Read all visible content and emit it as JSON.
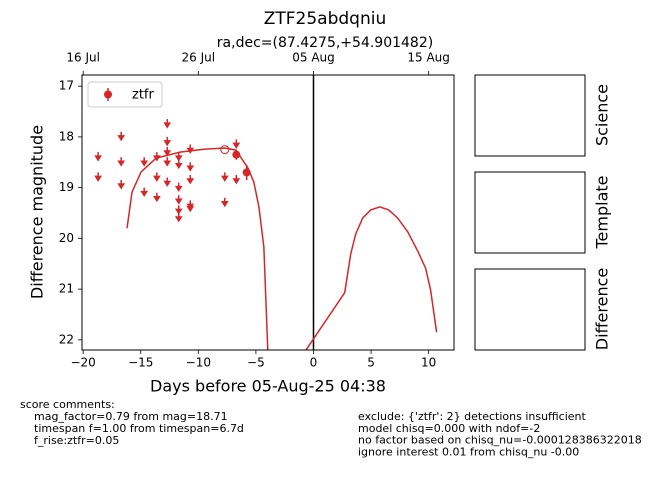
{
  "chart_data": {
    "type": "lightcurve",
    "title": "ZTF25abdqniu",
    "subtitle": "ra,dec=(87.4275,+54.901482)",
    "x_label": "Days before 05-Aug-25 04:38",
    "y_label": "Difference magnitude",
    "xlim": [
      -20.1,
      12.2
    ],
    "ylim": [
      22.2,
      16.78
    ],
    "xticks": [
      {
        "value": -20,
        "label": "−20"
      },
      {
        "value": -15,
        "label": "−15"
      },
      {
        "value": -10,
        "label": "−10"
      },
      {
        "value": -5,
        "label": "−5"
      },
      0,
      5,
      10
    ],
    "yticks": [
      17,
      18,
      19,
      20,
      21,
      22
    ],
    "x2ticks": [
      {
        "value": -20,
        "label": "16 Jul"
      },
      {
        "value": -10,
        "label": "26 Jul"
      },
      {
        "value": 0,
        "label": "05 Aug"
      },
      {
        "value": 10,
        "label": "15 Aug"
      }
    ],
    "vlines": [
      0
    ],
    "legend": "upper left",
    "series": [
      {
        "kind": "upper_limit",
        "color": "#d62728",
        "x": [
          -18.7,
          -18.7,
          -16.7,
          -16.7,
          -16.7,
          -14.7,
          -14.7,
          -13.6,
          -13.6,
          -13.6,
          -12.7,
          -12.7,
          -12.7,
          -12.7,
          -12.7,
          -11.7,
          -11.7,
          -11.7,
          -11.7,
          -11.7,
          -11.7,
          -10.7,
          -10.7,
          -10.7,
          -10.7,
          -10.7,
          -7.7,
          -7.7,
          -6.7,
          -6.7
        ],
        "values": [
          18.3,
          18.7,
          17.9,
          18.4,
          18.85,
          18.4,
          19.0,
          18.3,
          18.7,
          19.1,
          17.65,
          18.0,
          18.2,
          18.4,
          18.8,
          18.3,
          18.45,
          18.9,
          19.15,
          19.35,
          19.5,
          18.15,
          18.5,
          18.75,
          19.25,
          19.3,
          18.7,
          19.2,
          18.05,
          18.75
        ]
      },
      {
        "name": "ztfr",
        "kind": "detection",
        "color": "#d62728",
        "x": [
          -6.7,
          -5.8
        ],
        "values": [
          18.35,
          18.7
        ],
        "errors": [
          0.1,
          0.15
        ]
      },
      {
        "kind": "open_detection",
        "color": "#d62728",
        "x": [
          -7.7
        ],
        "values": [
          18.25
        ]
      },
      {
        "kind": "model",
        "color": "#d62728",
        "x": [
          -16.19,
          -15.76,
          -14.97,
          -13.67,
          -11.59,
          -9.42,
          -7.69,
          -6.74,
          -5.7,
          -5.18,
          -4.74,
          -4.31,
          -3.97,
          null,
          -0.8,
          2.71,
          3.23,
          3.67,
          4.27,
          4.97,
          5.75,
          6.53,
          7.31,
          8.18,
          9.05,
          9.74,
          10.17,
          10.69
        ],
        "values": [
          19.8,
          19.09,
          18.69,
          18.42,
          18.3,
          18.24,
          18.22,
          18.26,
          18.61,
          18.89,
          19.38,
          20.17,
          22.2,
          null,
          22.25,
          21.07,
          20.31,
          19.91,
          19.6,
          19.44,
          19.38,
          19.44,
          19.6,
          19.87,
          20.25,
          20.59,
          21.02,
          21.85
        ]
      }
    ]
  },
  "panels": [
    "Science",
    "Template",
    "Difference"
  ],
  "comments": {
    "left": [
      "score comments:",
      "mag_factor=0.79 from mag=18.71",
      "timespan f=1.00 from timespan=6.7d",
      "f_rise:ztfr=0.05"
    ],
    "right": [
      "exclude: {'ztfr': 2} detections insufficient",
      "model chisq=0.000 with ndof=-2",
      "no factor based on chisq_nu=-0.000128386322018",
      "ignore interest 0.01 from chisq_nu -0.00"
    ]
  }
}
